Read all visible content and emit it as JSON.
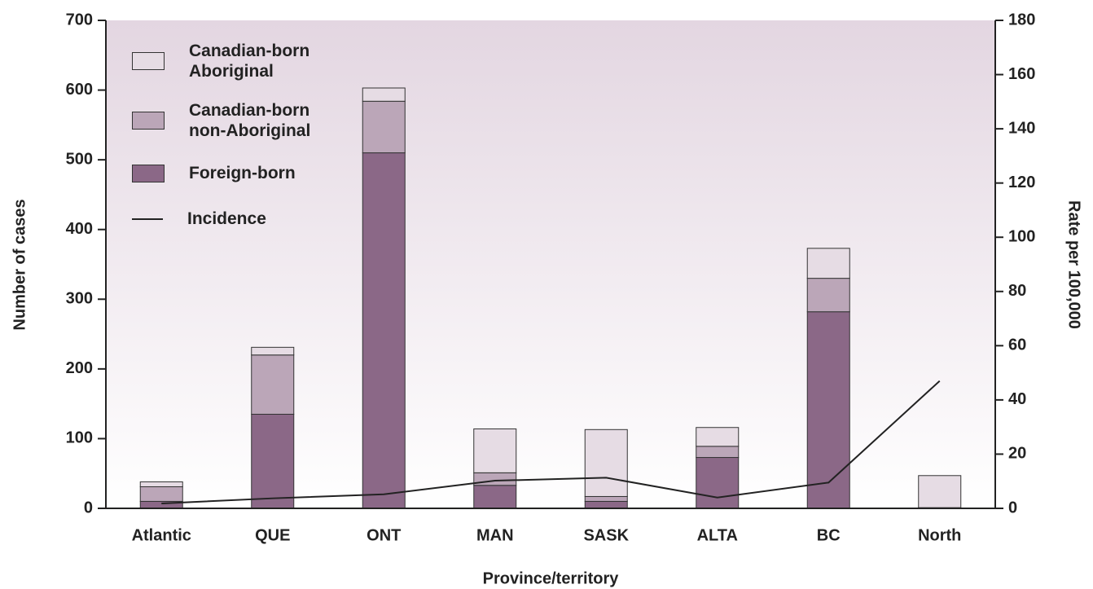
{
  "chart_data": {
    "type": "bar",
    "stacked": true,
    "x_label": "Province/territory",
    "y_label": "Number of cases",
    "y2_label": "Rate per 100,000",
    "categories": [
      "Atlantic",
      "QUE",
      "ONT",
      "MAN",
      "SASK",
      "ALTA",
      "BC",
      "North"
    ],
    "series": [
      {
        "name": "Foreign-born",
        "color": "#8b6887",
        "values": [
          10,
          135,
          510,
          33,
          10,
          73,
          282,
          0
        ]
      },
      {
        "name": "Canadian-born non-Aboriginal",
        "color": "#bba6b8",
        "values": [
          21,
          85,
          74,
          18,
          7,
          16,
          48,
          1
        ]
      },
      {
        "name": "Canadian-born Aboriginal",
        "color": "#e6dce4",
        "values": [
          7,
          11,
          19,
          63,
          96,
          27,
          43,
          46
        ]
      },
      {
        "name": "Incidence",
        "type": "line",
        "axis": "y2",
        "color": "#222222",
        "values": [
          1.8,
          3.7,
          5.2,
          10.2,
          11.3,
          4.0,
          9.5,
          47
        ]
      }
    ],
    "ylim": [
      0,
      700
    ],
    "yticks": [
      0,
      100,
      200,
      300,
      400,
      500,
      600,
      700
    ],
    "y2lim": [
      0,
      180
    ],
    "y2ticks": [
      0,
      20,
      40,
      60,
      80,
      100,
      120,
      140,
      160,
      180
    ]
  }
}
